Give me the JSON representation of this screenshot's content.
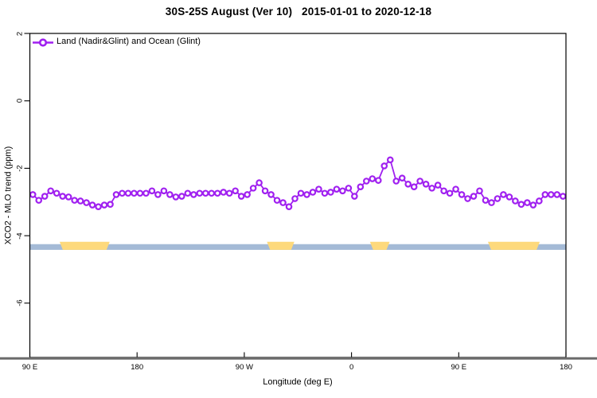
{
  "title": "30S-25S August (Ver 10)   2015-01-01 to 2020-12-18",
  "legend": {
    "label": "Land (Nadir&Glint) and Ocean (Glint)"
  },
  "axes": {
    "x_label": "Longitude (deg E)",
    "y_label": "XCO2 - MLO trend (ppm)",
    "x_ticks": [
      {
        "axis_deg": 90,
        "label": "90 E"
      },
      {
        "axis_deg": 180,
        "label": "180"
      },
      {
        "axis_deg": 270,
        "label": "90 W"
      },
      {
        "axis_deg": 360,
        "label": "0"
      },
      {
        "axis_deg": 450,
        "label": "90 E"
      },
      {
        "axis_deg": 540,
        "label": "180"
      }
    ],
    "y_ticks": [
      {
        "value": 2,
        "label": "2"
      },
      {
        "value": 0,
        "label": "0"
      },
      {
        "value": -2,
        "label": "-2"
      },
      {
        "value": -4,
        "label": "-4"
      },
      {
        "value": -6,
        "label": "-6"
      }
    ]
  },
  "chart_data": {
    "type": "line",
    "title": "30S-25S August (Ver 10)   2015-01-01 to 2020-12-18",
    "xlabel": "Longitude (deg E)",
    "ylabel": "XCO2 - MLO trend (ppm)",
    "xlim_axis_deg": [
      90,
      540
    ],
    "ylim": [
      -7.6,
      2
    ],
    "grid": false,
    "legend_position": "top-left-inside",
    "series": [
      {
        "name": "Land (Nadir&Glint) and Ocean (Glint)",
        "marker": "open-circle",
        "x_start_axis_deg": 92.5,
        "x_step_deg": 5,
        "values": [
          -2.78,
          -2.95,
          -2.83,
          -2.67,
          -2.74,
          -2.83,
          -2.85,
          -2.95,
          -2.97,
          -3.02,
          -3.09,
          -3.14,
          -3.09,
          -3.07,
          -2.78,
          -2.74,
          -2.74,
          -2.74,
          -2.74,
          -2.74,
          -2.67,
          -2.78,
          -2.67,
          -2.78,
          -2.85,
          -2.83,
          -2.74,
          -2.78,
          -2.74,
          -2.74,
          -2.74,
          -2.74,
          -2.71,
          -2.74,
          -2.67,
          -2.83,
          -2.78,
          -2.59,
          -2.43,
          -2.67,
          -2.78,
          -2.95,
          -3.02,
          -3.14,
          -2.9,
          -2.74,
          -2.78,
          -2.71,
          -2.62,
          -2.74,
          -2.71,
          -2.62,
          -2.67,
          -2.59,
          -2.83,
          -2.55,
          -2.38,
          -2.31,
          -2.36,
          -1.93,
          -1.75,
          -2.38,
          -2.29,
          -2.47,
          -2.55,
          -2.38,
          -2.47,
          -2.59,
          -2.5,
          -2.67,
          -2.74,
          -2.62,
          -2.78,
          -2.9,
          -2.83,
          -2.67,
          -2.95,
          -3.02,
          -2.9,
          -2.78,
          -2.85,
          -2.97,
          -3.07,
          -3.02,
          -3.09,
          -2.97,
          -2.78,
          -2.78,
          -2.78,
          -2.83
        ]
      }
    ],
    "surface_band": {
      "description": "ocean/land indicator strip near y=-4.3",
      "value_range": [
        -4.42,
        -4.18
      ],
      "ocean_color": "#A4BAD6",
      "land_color": "#FDD97C",
      "land_segments_axis_deg": [
        [
          115,
          157
        ],
        [
          289,
          312
        ],
        [
          375.5,
          392
        ],
        [
          474.5,
          518
        ]
      ]
    },
    "colors": {
      "series": "#A020F0",
      "axis_line": "#6B6B6B",
      "frame": "#000000"
    }
  }
}
